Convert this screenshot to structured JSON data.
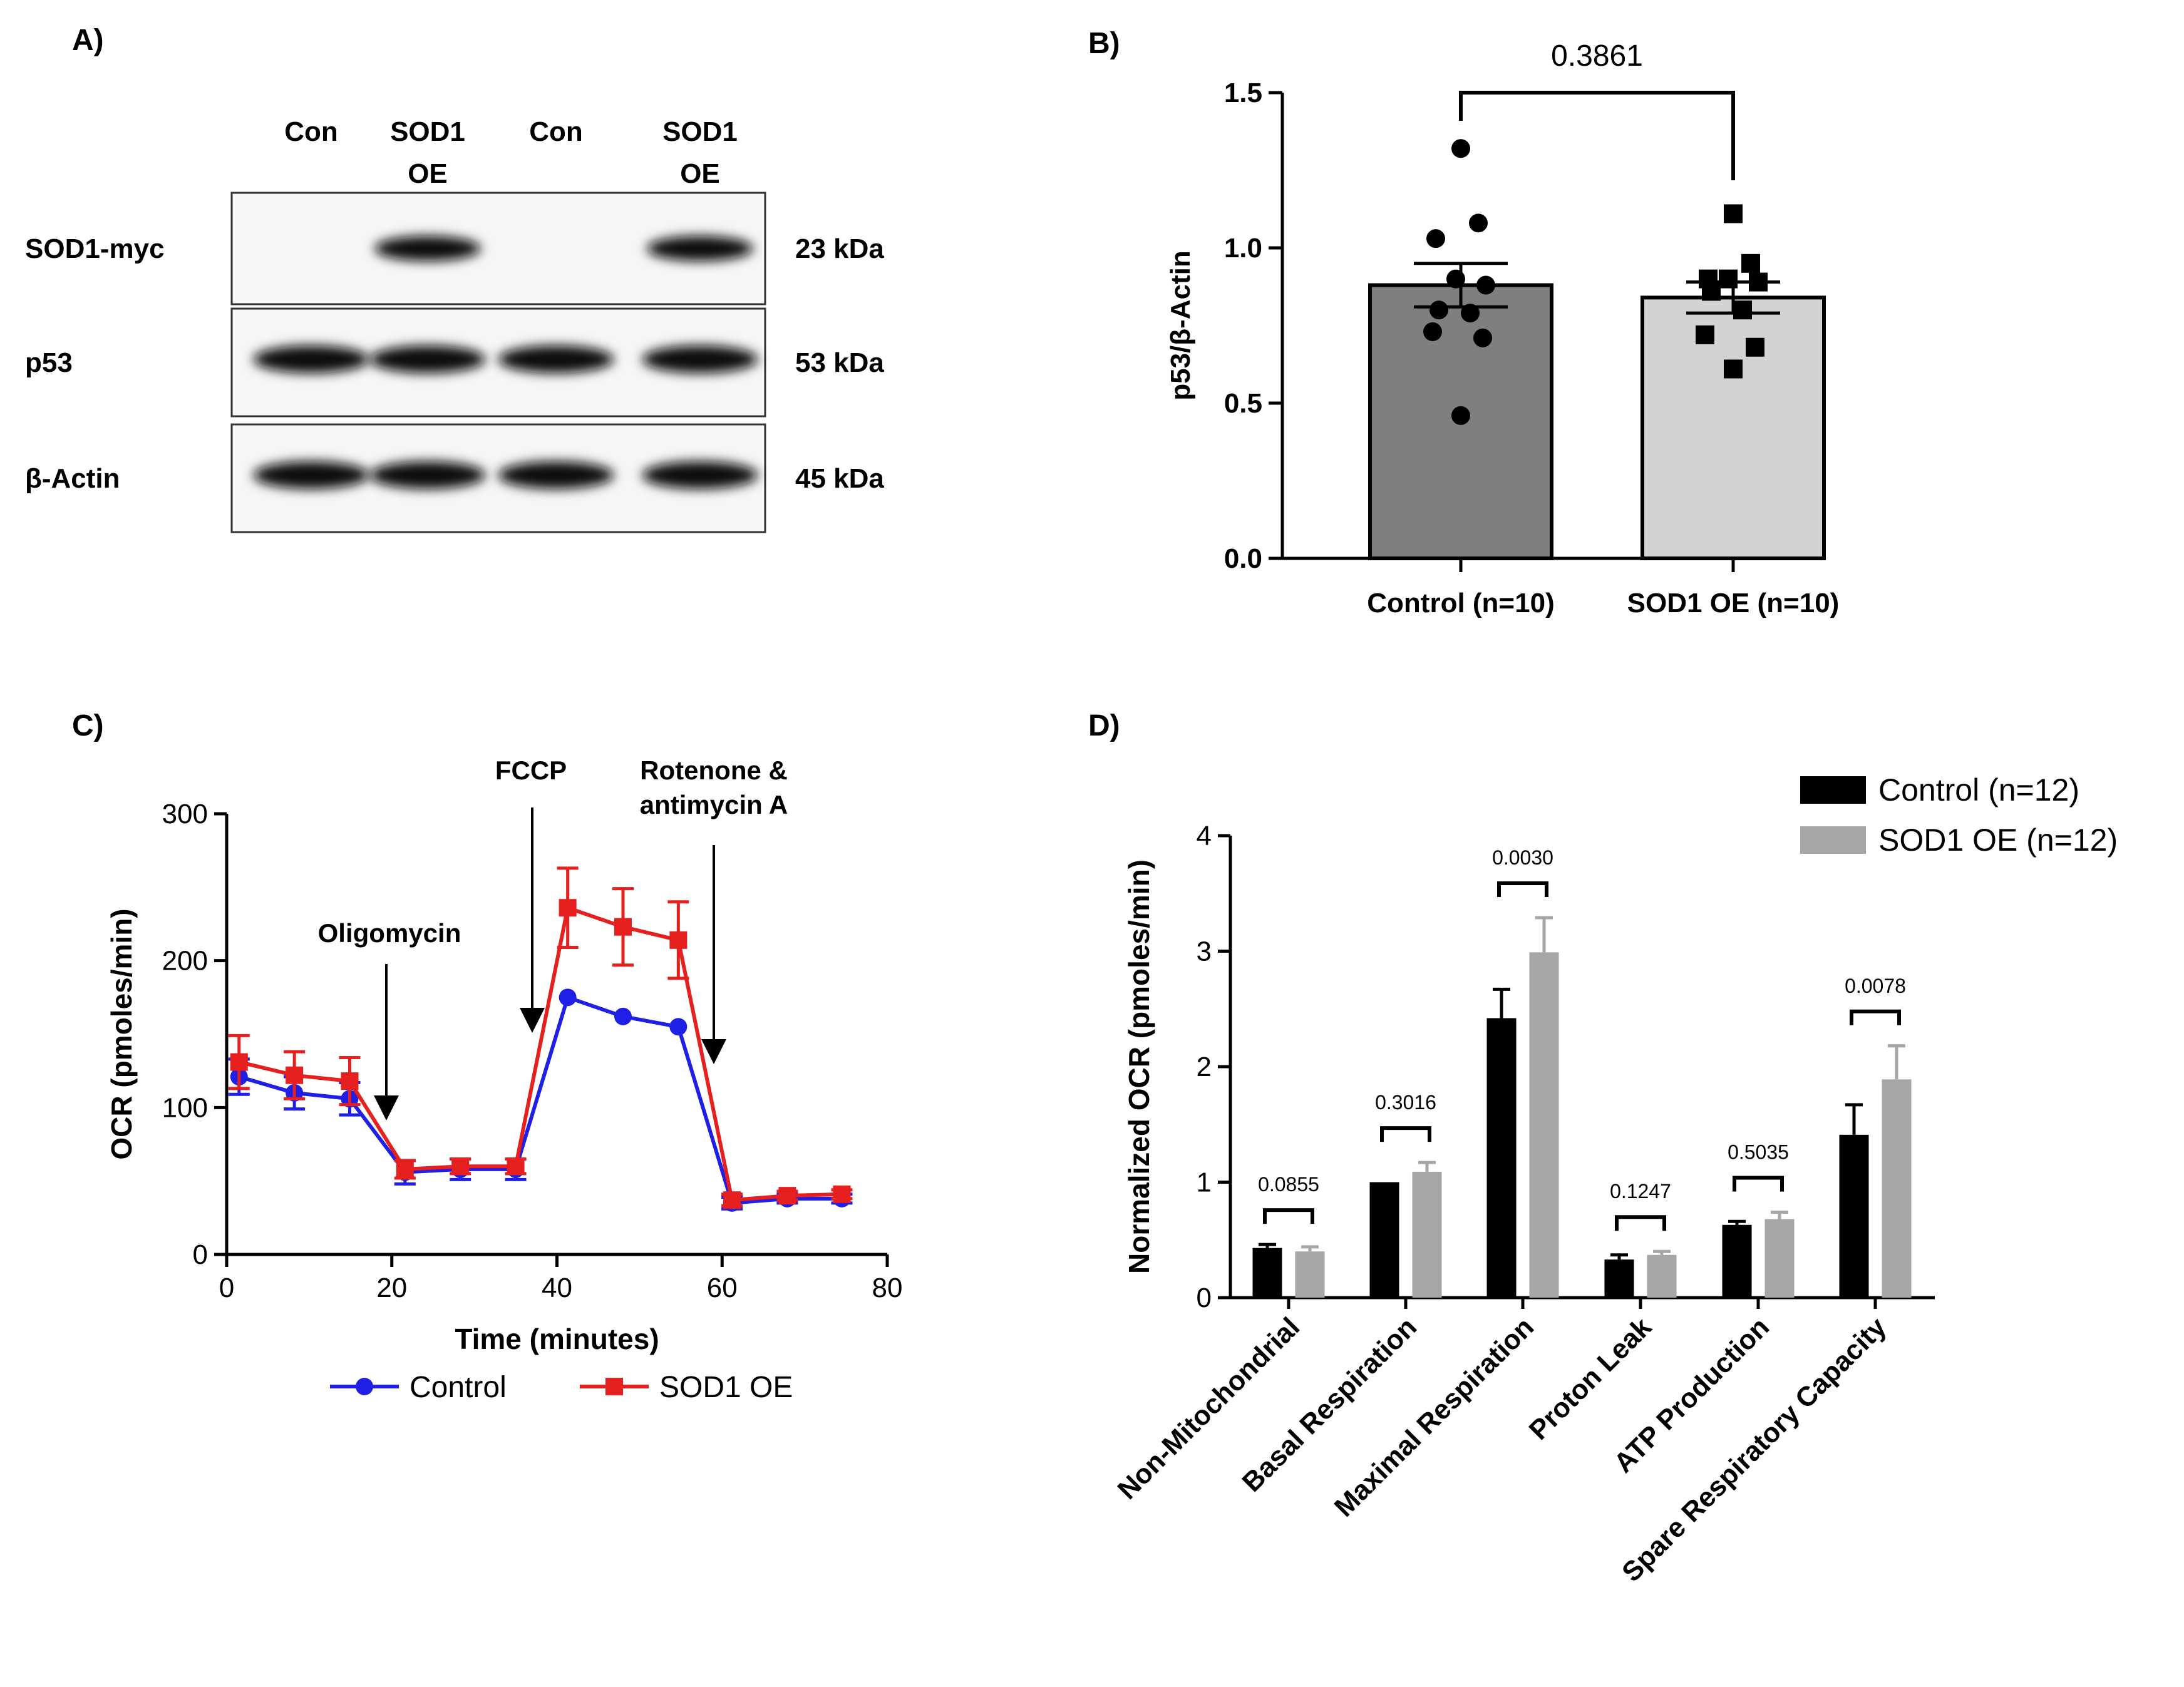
{
  "panels": {
    "a": {
      "label": "A)",
      "lanes": [
        {
          "top": "Con",
          "bottom": ""
        },
        {
          "top": "SOD1",
          "bottom": "OE"
        },
        {
          "top": "Con",
          "bottom": ""
        },
        {
          "top": "SOD1",
          "bottom": "OE"
        }
      ],
      "blots": [
        {
          "protein": "SOD1-myc",
          "size": "23 kDa",
          "intensity": [
            0,
            1,
            0,
            1
          ]
        },
        {
          "protein": "p53",
          "size": "53 kDa",
          "intensity": [
            1,
            1,
            1,
            1
          ]
        },
        {
          "protein": "β-Actin",
          "size": "45 kDa",
          "intensity": [
            1,
            1,
            1,
            1
          ]
        }
      ]
    },
    "b": {
      "label": "B)"
    },
    "c": {
      "label": "C)",
      "annotations": [
        {
          "text": "Oligomycin",
          "time": 20
        },
        {
          "text": "FCCP",
          "time": 37
        },
        {
          "text": [
            "Rotenone &",
            "antimycin A"
          ],
          "time": 59
        }
      ],
      "colors": {
        "Control": "#1f1fe6",
        "SOD1 OE": "#e61f1f"
      }
    },
    "d": {
      "label": "D)",
      "colors": {
        "Control": "#000000",
        "SOD1 OE": "#a6a6a6"
      }
    }
  },
  "chart_data": [
    {
      "panel": "B",
      "type": "bar",
      "ylabel": "p53/β-Actin",
      "ylim": [
        0,
        1.5
      ],
      "yticks": [
        "0.0",
        "0.5",
        "1.0",
        "1.5"
      ],
      "categories": [
        "Control (n=10)",
        "SOD1 OE (n=10)"
      ],
      "values": [
        0.88,
        0.84
      ],
      "sem": [
        0.07,
        0.05
      ],
      "bar_colors": [
        "#7f7f7f",
        "#d3d3d3"
      ],
      "points": [
        [
          1.32,
          1.08,
          1.03,
          0.9,
          0.88,
          0.8,
          0.79,
          0.73,
          0.71,
          0.46
        ],
        [
          1.11,
          0.95,
          0.9,
          0.9,
          0.89,
          0.86,
          0.8,
          0.72,
          0.68,
          0.61
        ]
      ],
      "p_value": "0.3861"
    },
    {
      "panel": "C",
      "type": "line",
      "xlabel": "Time (minutes)",
      "ylabel": "OCR (pmoles/min)",
      "xlim": [
        0,
        80
      ],
      "ylim": [
        0,
        300
      ],
      "xticks": [
        "0",
        "20",
        "40",
        "60",
        "80"
      ],
      "yticks": [
        "0",
        "100",
        "200",
        "300"
      ],
      "series": [
        {
          "name": "Control",
          "x": [
            1.5,
            8.2,
            14.9,
            21.6,
            28.3,
            35.0,
            41.3,
            48.0,
            54.7,
            61.2,
            67.9,
            74.5
          ],
          "values": [
            121,
            110,
            106,
            56,
            58,
            58,
            175,
            162,
            155,
            35,
            38,
            38
          ],
          "err": [
            12,
            11,
            11,
            8,
            7,
            7,
            0,
            0,
            0,
            4,
            3,
            3
          ]
        },
        {
          "name": "SOD1 OE",
          "x": [
            1.5,
            8.2,
            14.9,
            21.6,
            28.3,
            35.0,
            41.3,
            48.0,
            54.7,
            61.2,
            67.9,
            74.5
          ],
          "values": [
            131,
            122,
            118,
            58,
            60,
            60,
            236,
            223,
            214,
            37,
            40,
            41
          ],
          "err": [
            18,
            16,
            16,
            6,
            5,
            5,
            27,
            26,
            26,
            4,
            3,
            3
          ]
        }
      ]
    },
    {
      "panel": "D",
      "type": "bar",
      "ylabel": "Normalized OCR (pmoles/min)",
      "ylim": [
        0,
        4
      ],
      "yticks": [
        "0",
        "1",
        "2",
        "3",
        "4"
      ],
      "categories": [
        "Non-Mitochondrial",
        "Basal Respiration",
        "Maximal Respiration",
        "Proton Leak",
        "ATP Production",
        "Spare Respiratory Capacity"
      ],
      "series": [
        {
          "name": "Control (n=12)",
          "values": [
            0.43,
            1.0,
            2.42,
            0.33,
            0.63,
            1.41
          ],
          "err": [
            0.03,
            0.0,
            0.25,
            0.04,
            0.03,
            0.26
          ]
        },
        {
          "name": "SOD1 OE (n=12)",
          "values": [
            0.4,
            1.09,
            2.99,
            0.37,
            0.68,
            1.89
          ],
          "err": [
            0.04,
            0.08,
            0.3,
            0.03,
            0.06,
            0.29
          ]
        }
      ],
      "p_values": [
        "0.0855",
        "0.3016",
        "0.0030",
        "0.1247",
        "0.5035",
        "0.0078"
      ]
    }
  ]
}
